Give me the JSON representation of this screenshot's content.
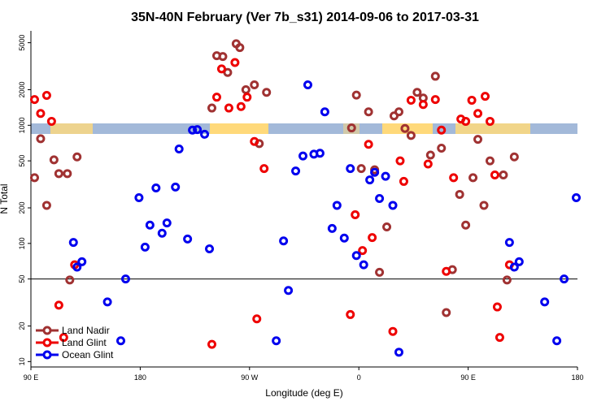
{
  "chart_data": {
    "type": "scatter",
    "title": "35N-40N February (Ver 7b_s31)   2014-09-06 to 2017-03-31",
    "x_label": "Longitude (deg E)",
    "y_label": "N Total",
    "xlim": [
      90,
      540
    ],
    "xticks": [
      {
        "value": 90,
        "label": "90 E"
      },
      180,
      {
        "value": 270,
        "label": "90 W"
      },
      {
        "value": 360,
        "label": "0"
      },
      {
        "value": 450,
        "label": "90 E"
      },
      {
        "value": 540,
        "label": "180"
      }
    ],
    "ylim": [
      9,
      6300
    ],
    "y_log": true,
    "yticks": [
      10,
      20,
      50,
      100,
      200,
      500,
      1000,
      2000,
      5000
    ],
    "hline": 50,
    "legend": "bottom-left",
    "series": [
      {
        "name": "Land Nadir",
        "color": "#a03232",
        "x": [
          93,
          98,
          103,
          109,
          113,
          120,
          122,
          128,
          239,
          243,
          248,
          252,
          259,
          262,
          267,
          274,
          278,
          284,
          354,
          358,
          362,
          368,
          373,
          377,
          383,
          389,
          393,
          398,
          403,
          408,
          413,
          419,
          423,
          428,
          432,
          437,
          443,
          448,
          454,
          458,
          463,
          468,
          479,
          482,
          488
        ],
        "values": [
          360,
          770,
          210,
          510,
          390,
          390,
          49,
          540,
          1400,
          3880,
          3820,
          2800,
          4900,
          4550,
          2000,
          2200,
          700,
          1900,
          950,
          1800,
          430,
          1300,
          420,
          57,
          138,
          1200,
          1300,
          940,
          820,
          1900,
          1700,
          560,
          2600,
          640,
          26,
          60,
          260,
          143,
          360,
          760,
          210,
          500,
          380,
          49,
          540
        ]
      },
      {
        "name": "Land Glint",
        "color": "#ee0000",
        "x": [
          93,
          98,
          103,
          107,
          113,
          117,
          126,
          239,
          243,
          247,
          253,
          258,
          263,
          268,
          274,
          276,
          282,
          353,
          357,
          363,
          368,
          371,
          388,
          394,
          397,
          403,
          413,
          417,
          423,
          428,
          432,
          438,
          444,
          448,
          453,
          458,
          464,
          468,
          472,
          474,
          476,
          484
        ],
        "values": [
          1650,
          1260,
          1790,
          1080,
          30,
          16,
          66,
          14,
          1730,
          3000,
          1400,
          3400,
          1440,
          1730,
          730,
          23,
          430,
          25,
          175,
          87,
          690,
          112,
          18,
          500,
          335,
          1630,
          1500,
          470,
          1650,
          910,
          58,
          360,
          1130,
          1080,
          1630,
          1260,
          1760,
          1080,
          380,
          29,
          16,
          66
        ]
      },
      {
        "name": "Ocean Glint",
        "color": "#0000ee",
        "x": [
          125,
          128,
          132,
          153,
          164,
          168,
          179,
          184,
          188,
          193,
          198,
          202,
          209,
          212,
          219,
          223,
          227,
          233,
          237,
          292,
          298,
          302,
          308,
          314,
          318,
          323,
          328,
          332,
          338,
          342,
          348,
          353,
          358,
          364,
          369,
          373,
          377,
          382,
          388,
          393,
          484,
          488,
          492,
          513,
          523,
          529,
          539
        ],
        "values": [
          102,
          63,
          70,
          32,
          15,
          50,
          244,
          93,
          143,
          295,
          122,
          149,
          300,
          630,
          109,
          910,
          920,
          840,
          90,
          15,
          105,
          40,
          410,
          550,
          2200,
          570,
          580,
          1300,
          134,
          210,
          111,
          430,
          79,
          66,
          345,
          400,
          240,
          370,
          210,
          12,
          102,
          63,
          70,
          32,
          15,
          50,
          244
        ]
      }
    ]
  }
}
